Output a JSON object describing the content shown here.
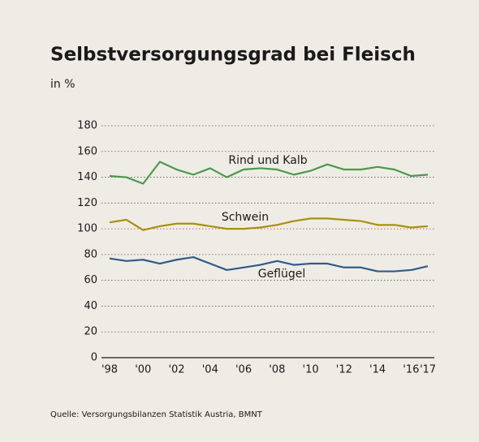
{
  "chart_data": {
    "type": "line",
    "title": "Selbstversorgungsgrad bei Fleisch",
    "subtitle": "in %",
    "source": "Quelle: Versorgungsbilanzen Statistik Austria, BMNT",
    "categories": [
      "'98",
      null,
      "'00",
      null,
      "'02",
      null,
      "'04",
      null,
      "'06",
      null,
      "'08",
      null,
      "'10",
      null,
      "'12",
      null,
      "'14",
      null,
      "'16",
      "'17"
    ],
    "series": [
      {
        "name": "Rind und Kalb",
        "color": "#4a9a4a",
        "values": [
          141,
          140,
          135,
          152,
          146,
          142,
          147,
          140,
          146,
          147,
          146,
          142,
          145,
          150,
          146,
          146,
          148,
          146,
          141,
          142
        ]
      },
      {
        "name": "Schwein",
        "color": "#a8900f",
        "values": [
          105,
          107,
          99,
          102,
          104,
          104,
          102,
          100,
          100,
          101,
          103,
          106,
          108,
          108,
          107,
          106,
          103,
          103,
          101,
          102
        ]
      },
      {
        "name": "Geflügel",
        "color": "#2f5b8a",
        "values": [
          77,
          75,
          76,
          73,
          76,
          78,
          73,
          68,
          70,
          72,
          75,
          72,
          73,
          73,
          70,
          70,
          67,
          67,
          68,
          71
        ]
      }
    ],
    "ylim": [
      0,
      180
    ],
    "yticks": [
      0,
      20,
      40,
      60,
      80,
      100,
      120,
      140,
      160,
      180
    ],
    "grid": true,
    "reference_line": {
      "value": 100,
      "color": "#c0392b"
    }
  }
}
